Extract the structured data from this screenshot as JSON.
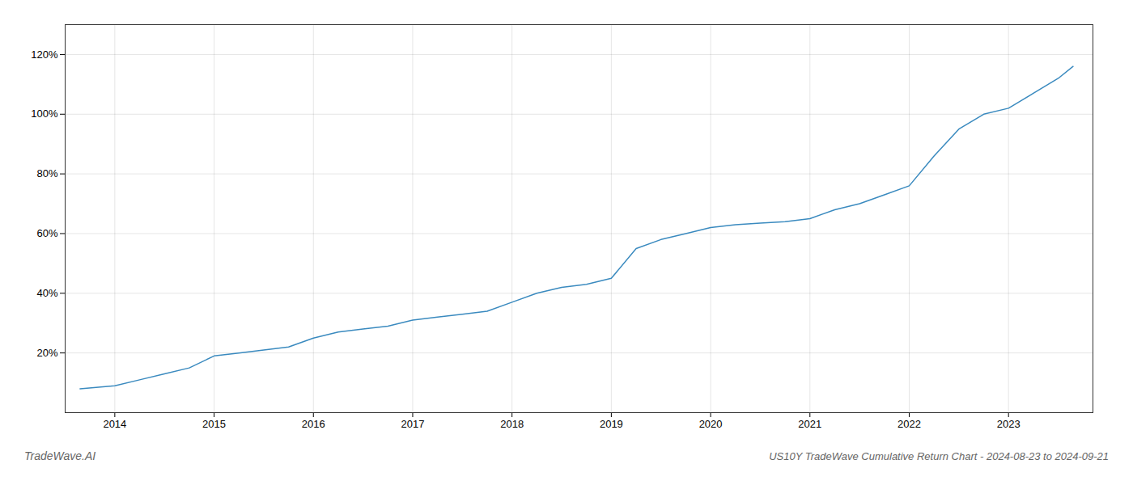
{
  "chart_data": {
    "type": "line",
    "title": "US10Y TradeWave Cumulative Return Chart - 2024-08-23 to 2024-09-21",
    "annotations": [
      "TradeWave.AI"
    ],
    "color": "#3a8abf",
    "x": [
      2013.65,
      2014.0,
      2014.25,
      2014.5,
      2014.75,
      2015.0,
      2015.25,
      2015.5,
      2015.75,
      2016.0,
      2016.25,
      2016.5,
      2016.75,
      2017.0,
      2017.25,
      2017.5,
      2017.75,
      2018.0,
      2018.25,
      2018.5,
      2018.75,
      2019.0,
      2019.25,
      2019.5,
      2019.75,
      2020.0,
      2020.25,
      2020.5,
      2020.75,
      2021.0,
      2021.25,
      2021.5,
      2021.75,
      2022.0,
      2022.25,
      2022.5,
      2022.75,
      2023.0,
      2023.25,
      2023.5,
      2023.65
    ],
    "values": [
      8,
      9,
      11,
      13,
      15,
      19,
      20,
      21,
      22,
      25,
      27,
      28,
      29,
      31,
      32,
      33,
      34,
      37,
      40,
      42,
      43,
      45,
      55,
      58,
      60,
      62,
      63,
      63.5,
      64,
      65,
      68,
      70,
      73,
      76,
      86,
      95,
      100,
      102,
      107,
      112,
      116
    ],
    "xlim": [
      2013.5,
      2023.85
    ],
    "xticks": [
      2014,
      2015,
      2016,
      2017,
      2018,
      2019,
      2020,
      2021,
      2022,
      2023
    ],
    "ylim": [
      0,
      130
    ],
    "yticks": [
      {
        "value": 20,
        "label": "20%"
      },
      {
        "value": 40,
        "label": "40%"
      },
      {
        "value": 60,
        "label": "60%"
      },
      {
        "value": 80,
        "label": "80%"
      },
      {
        "value": 100,
        "label": "100%"
      },
      {
        "value": 120,
        "label": "120%"
      }
    ],
    "grid": true
  }
}
